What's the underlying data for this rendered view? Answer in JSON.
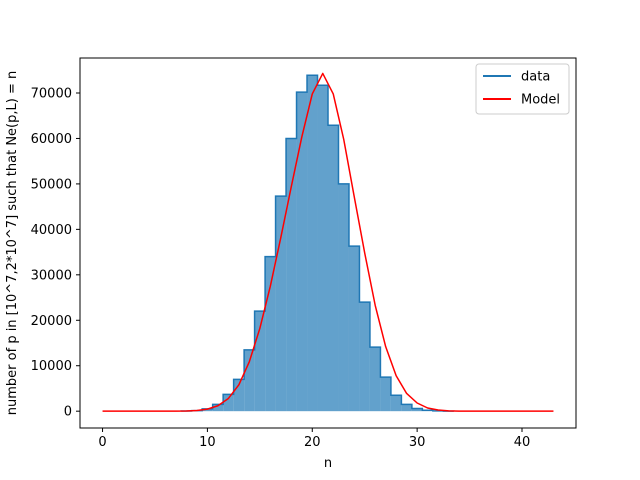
{
  "chart_data": {
    "type": "bar",
    "title": "",
    "xlabel": "n",
    "ylabel": "number of p in [10^7,2*10^7] such that Ne(p,L) = n",
    "xlim": [
      -2.15,
      45.15
    ],
    "ylim": [
      -3700,
      77700
    ],
    "xticks": [
      0,
      10,
      20,
      30,
      40
    ],
    "yticks": [
      0,
      10000,
      20000,
      30000,
      40000,
      50000,
      60000,
      70000
    ],
    "legend": {
      "position": "top-right",
      "entries": [
        "data",
        "Model"
      ]
    },
    "colors": {
      "data_fill": "#62a1cc",
      "data_edge": "#1f77b4",
      "model": "#ff0000"
    },
    "series": [
      {
        "name": "data",
        "kind": "step-histogram",
        "bin_centers": [
          8,
          9,
          10,
          11,
          12,
          13,
          14,
          15,
          16,
          17,
          18,
          19,
          20,
          21,
          22,
          23,
          24,
          25,
          26,
          27,
          28,
          29,
          30,
          31,
          32,
          33
        ],
        "values": [
          30,
          120,
          500,
          1500,
          3700,
          7000,
          13500,
          22000,
          34000,
          47300,
          60000,
          70200,
          73900,
          71700,
          62900,
          50000,
          36300,
          24000,
          14100,
          7500,
          3500,
          1500,
          600,
          200,
          60,
          20
        ]
      },
      {
        "name": "Model",
        "kind": "line",
        "x": [
          0,
          1,
          2,
          3,
          4,
          5,
          6,
          7,
          8,
          9,
          10,
          11,
          12,
          13,
          14,
          15,
          16,
          17,
          18,
          19,
          20,
          21,
          22,
          23,
          24,
          25,
          26,
          27,
          28,
          29,
          30,
          31,
          32,
          33,
          34,
          35,
          36,
          37,
          38,
          39,
          40,
          41,
          42,
          43
        ],
        "y": [
          0,
          0,
          0,
          0,
          0,
          0,
          0,
          10,
          40,
          140,
          450,
          1200,
          2800,
          5800,
          10900,
          18200,
          27500,
          38200,
          49400,
          60300,
          69800,
          74300,
          69800,
          59800,
          47200,
          34800,
          23300,
          14200,
          7800,
          3900,
          1800,
          700,
          250,
          80,
          20,
          5,
          0,
          0,
          0,
          0,
          0,
          0,
          0,
          0
        ]
      }
    ]
  }
}
